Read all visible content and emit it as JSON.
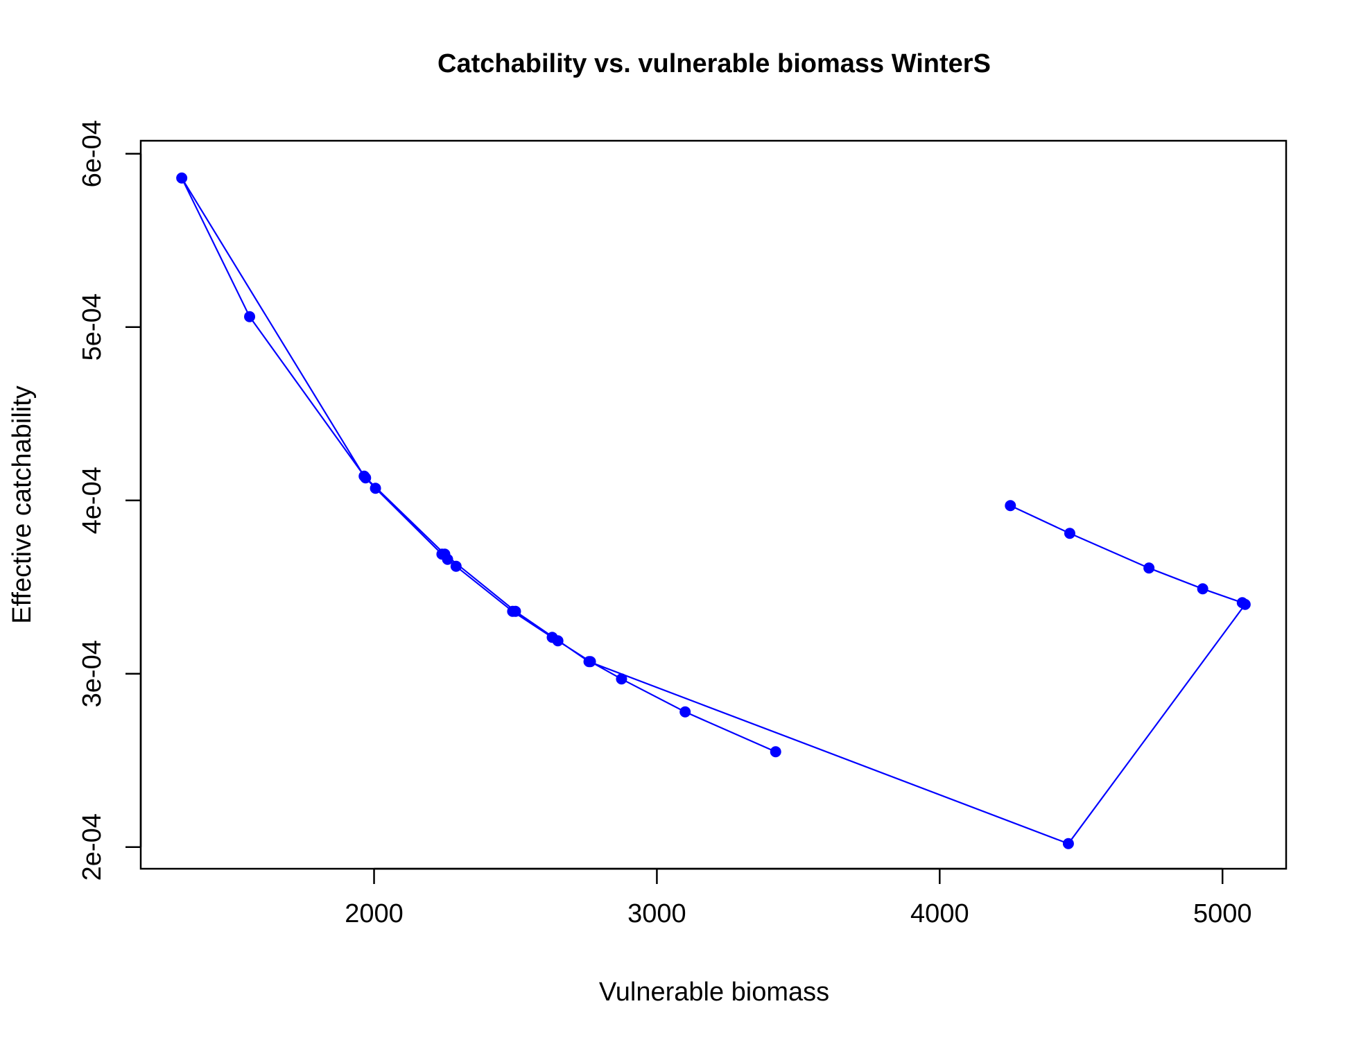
{
  "chart_data": {
    "type": "line",
    "title": "Catchability vs. vulnerable biomass WinterS",
    "xlabel": "Vulnerable biomass",
    "ylabel": "Effective catchability",
    "xlim": [
      1175,
      5225
    ],
    "ylim": [
      0.0001875,
      0.0006075
    ],
    "xticks": [
      2000,
      3000,
      4000,
      5000
    ],
    "xtick_labels": [
      "2000",
      "3000",
      "4000",
      "5000"
    ],
    "yticks": [
      0.0002,
      0.0003,
      0.0004,
      0.0005,
      0.0006
    ],
    "ytick_labels": [
      "2e-04",
      "3e-04",
      "4e-04",
      "5e-04",
      "6e-04"
    ],
    "grid": false,
    "series": [
      {
        "color": "#0000ff",
        "marker": "filled-circle",
        "x": [
          4250,
          4460,
          4740,
          4930,
          5070,
          5080,
          4455,
          2760,
          2500,
          2250,
          1965,
          1320,
          1560,
          1970,
          2005,
          2240,
          2260,
          2290,
          2490,
          2630,
          2650,
          2765,
          2875,
          3100,
          3420
        ],
        "y": [
          0.000397,
          0.000381,
          0.000361,
          0.000349,
          0.000341,
          0.00034,
          0.000202,
          0.000307,
          0.000336,
          0.000369,
          0.000414,
          0.000586,
          0.000506,
          0.000413,
          0.000407,
          0.000369,
          0.000366,
          0.000362,
          0.000336,
          0.000321,
          0.000319,
          0.000307,
          0.000297,
          0.000278,
          0.000255
        ]
      }
    ]
  }
}
